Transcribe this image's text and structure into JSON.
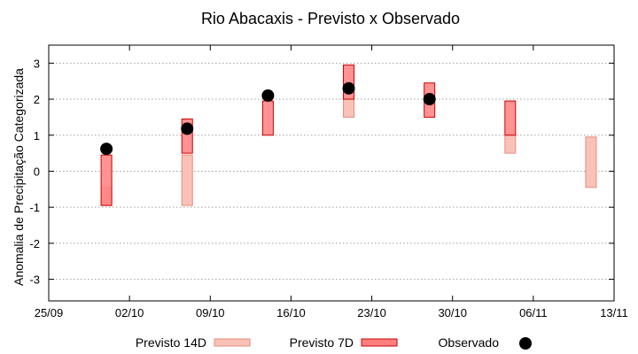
{
  "chart_data": {
    "type": "range-bar",
    "title": "Rio Abacaxis - Previsto x Observado",
    "ylabel": "Anomalia de Precipitação Categorizada",
    "xlabel": "",
    "ylim": [
      -3.6,
      3.5
    ],
    "yticks": [
      3,
      2,
      1,
      0,
      -1,
      -2,
      -3
    ],
    "xdomain_days": [
      0,
      49
    ],
    "xticks": [
      {
        "day": 0,
        "label": "25/09"
      },
      {
        "day": 7,
        "label": "02/10"
      },
      {
        "day": 14,
        "label": "09/10"
      },
      {
        "day": 21,
        "label": "16/10"
      },
      {
        "day": 28,
        "label": "23/10"
      },
      {
        "day": 35,
        "label": "30/10"
      },
      {
        "day": 42,
        "label": "06/11"
      },
      {
        "day": 49,
        "label": "13/11"
      }
    ],
    "grid": true,
    "legend_position": "bottom",
    "series": [
      {
        "name": "Previsto 14D",
        "kind": "range",
        "color": "#f9c2b8",
        "edge": "#e88a7e",
        "points": [
          {
            "day": 5,
            "low": -0.95,
            "high": -0.45
          },
          {
            "day": 12,
            "low": -0.95,
            "high": 0.45
          },
          {
            "day": 26,
            "low": 1.5,
            "high": 2.0
          },
          {
            "day": 40,
            "low": 0.5,
            "high": 1.0
          },
          {
            "day": 47,
            "low": -0.45,
            "high": 0.95
          }
        ]
      },
      {
        "name": "Previsto 7D",
        "kind": "range",
        "color": "#ff7f7f",
        "edge": "#cc0000",
        "points": [
          {
            "day": 5,
            "low": -0.95,
            "high": 0.45
          },
          {
            "day": 12,
            "low": 0.5,
            "high": 1.45
          },
          {
            "day": 19,
            "low": 1.0,
            "high": 1.95
          },
          {
            "day": 26,
            "low": 2.0,
            "high": 2.95
          },
          {
            "day": 33,
            "low": 1.5,
            "high": 2.45
          },
          {
            "day": 40,
            "low": 1.0,
            "high": 1.95
          }
        ]
      },
      {
        "name": "Observado",
        "kind": "point",
        "color": "#000000",
        "points": [
          {
            "day": 5,
            "value": 0.62
          },
          {
            "day": 12,
            "value": 1.18
          },
          {
            "day": 19,
            "value": 2.1
          },
          {
            "day": 26,
            "value": 2.3
          },
          {
            "day": 33,
            "value": 2.0
          }
        ]
      }
    ]
  }
}
